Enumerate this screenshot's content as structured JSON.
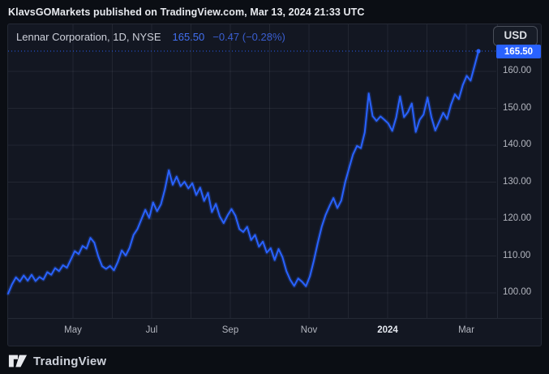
{
  "attribution": {
    "text": "KlavsGOMarkets published on TradingView.com, Mar 13, 2024 21:33 UTC"
  },
  "header": {
    "symbol_title": "Lennar Corporation, 1D, NYSE",
    "last_price": "165.50",
    "change": "−0.47 (−0.28%)"
  },
  "currency_button": {
    "label": "USD"
  },
  "price_axis": {
    "last_price_label": "165.50"
  },
  "footer": {
    "brand": "TradingView"
  },
  "colors": {
    "line": "#2962FF",
    "badge": "#2962FF",
    "background": "#131722",
    "grid": "rgba(240,243,250,0.07)",
    "axis_text": "#b3b6bf"
  },
  "chart_data": {
    "type": "line",
    "title": "Lennar Corporation, 1D, NYSE",
    "symbol": "Lennar Corporation",
    "timeframe": "1D",
    "exchange": "NYSE",
    "currency": "USD",
    "last_price": 165.5,
    "change": -0.47,
    "change_percent": -0.28,
    "x_start": "2023-04-14",
    "x_end": "2024-03-13",
    "x_tick_labels": [
      "May",
      "Jul",
      "Sep",
      "Nov",
      "2024",
      "Mar"
    ],
    "y_tick_values": [
      160,
      150,
      140,
      130,
      120,
      110,
      100
    ],
    "y_tick_labels": [
      "160.00",
      "150.00",
      "140.00",
      "130.00",
      "120.00",
      "110.00",
      "100.00"
    ],
    "ylim": [
      93,
      173
    ],
    "grid": true,
    "legend_position": "none",
    "prices": [
      99.8,
      102.3,
      104.2,
      103.1,
      104.7,
      103.3,
      104.9,
      103.2,
      104.3,
      103.6,
      105.6,
      104.9,
      106.7,
      105.9,
      107.5,
      106.8,
      109.0,
      111.3,
      110.5,
      112.7,
      112.0,
      114.9,
      113.6,
      109.9,
      107.2,
      106.5,
      107.3,
      106.1,
      108.4,
      111.5,
      110.1,
      112.2,
      115.7,
      117.3,
      119.9,
      122.5,
      120.3,
      124.5,
      122.1,
      124.0,
      128.0,
      133.2,
      129.3,
      131.5,
      128.9,
      130.1,
      128.3,
      129.7,
      126.5,
      128.5,
      124.9,
      127.1,
      121.9,
      124.1,
      120.7,
      118.9,
      121.0,
      122.7,
      120.9,
      117.3,
      116.5,
      117.9,
      114.3,
      115.7,
      112.5,
      113.9,
      110.9,
      112.1,
      108.9,
      111.9,
      109.7,
      105.9,
      103.5,
      101.9,
      103.9,
      103.0,
      101.8,
      104.5,
      108.7,
      113.5,
      117.9,
      121.1,
      123.5,
      125.7,
      123.0,
      125.0,
      130.0,
      133.8,
      137.5,
      139.8,
      139.2,
      143.5,
      154.0,
      147.9,
      146.6,
      147.8,
      146.9,
      145.9,
      143.9,
      147.5,
      153.2,
      147.6,
      149.0,
      151.3,
      143.6,
      146.9,
      148.3,
      152.9,
      147.6,
      144.0,
      146.4,
      148.8,
      147.1,
      151.0,
      153.8,
      152.5,
      156.3,
      158.8,
      157.5,
      161.5,
      165.5
    ]
  }
}
